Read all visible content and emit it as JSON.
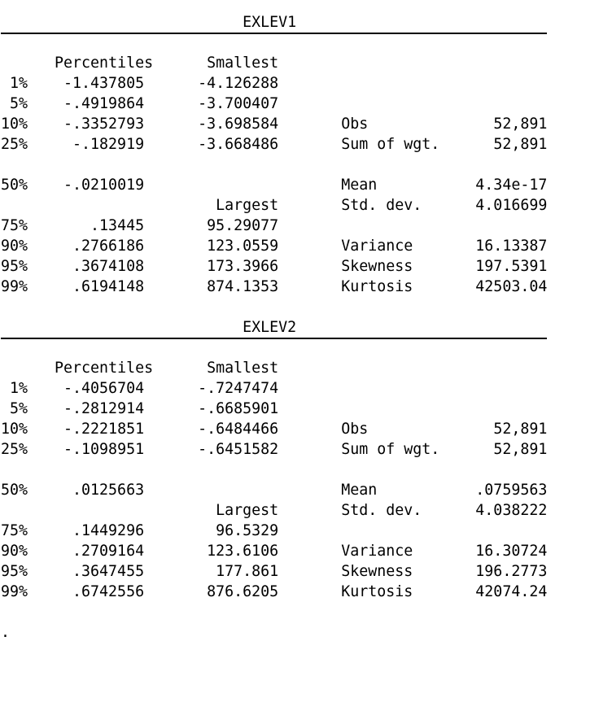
{
  "window": {
    "background": "#ffffff",
    "text_color": "#000000",
    "rule_color": "#000000"
  },
  "prompt": ".",
  "blocks": [
    {
      "title": "EXLEV1",
      "headers": {
        "percentiles": "Percentiles",
        "smallest": "Smallest",
        "largest": "Largest"
      },
      "percentiles": [
        {
          "p": "1%",
          "value": "-1.437805",
          "extreme": "-4.126288"
        },
        {
          "p": "5%",
          "value": "-.4919864",
          "extreme": "-3.700407"
        },
        {
          "p": "10%",
          "value": "-.3352793",
          "extreme": "-3.698584"
        },
        {
          "p": "25%",
          "value": "-.182919",
          "extreme": "-3.668486"
        },
        {
          "p": "50%",
          "value": "-.0210019",
          "extreme": ""
        },
        {
          "p": "75%",
          "value": ".13445",
          "extreme": "95.29077"
        },
        {
          "p": "90%",
          "value": ".2766186",
          "extreme": "123.0559"
        },
        {
          "p": "95%",
          "value": ".3674108",
          "extreme": "173.3966"
        },
        {
          "p": "99%",
          "value": ".6194148",
          "extreme": "874.1353"
        }
      ],
      "stats": {
        "obs_label": "Obs",
        "obs": "52,891",
        "sum_of_wgt_label": "Sum of wgt.",
        "sum_of_wgt": "52,891",
        "mean_label": "Mean",
        "mean": "4.34e-17",
        "std_dev_label": "Std. dev.",
        "std_dev": "4.016699",
        "variance_label": "Variance",
        "variance": "16.13387",
        "skewness_label": "Skewness",
        "skewness": "197.5391",
        "kurtosis_label": "Kurtosis",
        "kurtosis": "42503.04"
      }
    },
    {
      "title": "EXLEV2",
      "headers": {
        "percentiles": "Percentiles",
        "smallest": "Smallest",
        "largest": "Largest"
      },
      "percentiles": [
        {
          "p": "1%",
          "value": "-.4056704",
          "extreme": "-.7247474"
        },
        {
          "p": "5%",
          "value": "-.2812914",
          "extreme": "-.6685901"
        },
        {
          "p": "10%",
          "value": "-.2221851",
          "extreme": "-.6484466"
        },
        {
          "p": "25%",
          "value": "-.1098951",
          "extreme": "-.6451582"
        },
        {
          "p": "50%",
          "value": ".0125663",
          "extreme": ""
        },
        {
          "p": "75%",
          "value": ".1449296",
          "extreme": "96.5329"
        },
        {
          "p": "90%",
          "value": ".2709164",
          "extreme": "123.6106"
        },
        {
          "p": "95%",
          "value": ".3647455",
          "extreme": "177.861"
        },
        {
          "p": "99%",
          "value": ".6742556",
          "extreme": "876.6205"
        }
      ],
      "stats": {
        "obs_label": "Obs",
        "obs": "52,891",
        "sum_of_wgt_label": "Sum of wgt.",
        "sum_of_wgt": "52,891",
        "mean_label": "Mean",
        "mean": ".0759563",
        "std_dev_label": "Std. dev.",
        "std_dev": "4.038222",
        "variance_label": "Variance",
        "variance": "16.30724",
        "skewness_label": "Skewness",
        "skewness": "196.2773",
        "kurtosis_label": "Kurtosis",
        "kurtosis": "42074.24"
      }
    }
  ]
}
